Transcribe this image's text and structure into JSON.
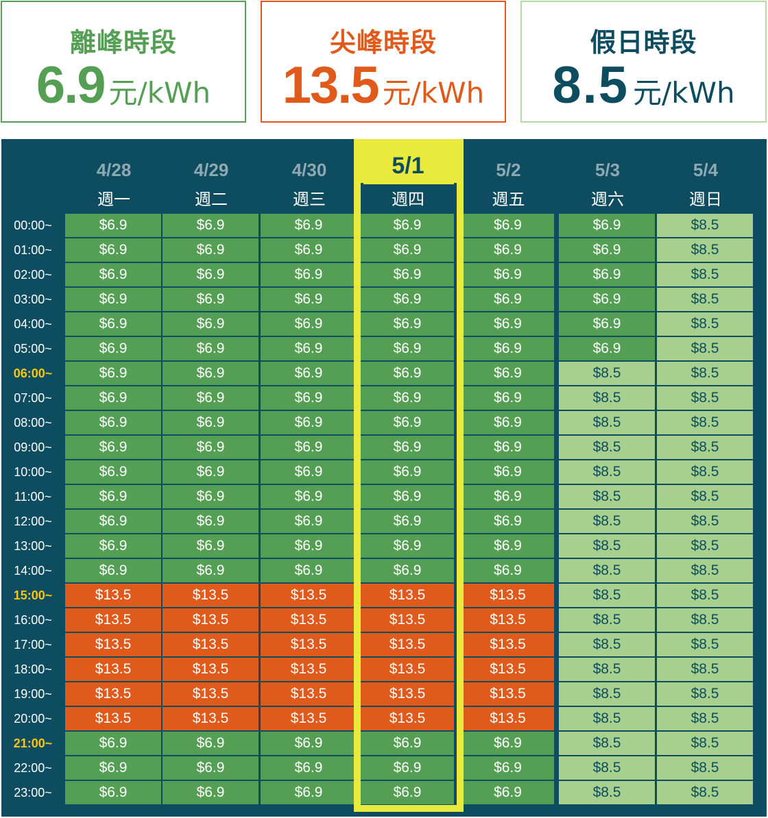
{
  "cards": [
    {
      "title": "離峰時段",
      "value": "6.9",
      "unit": "元/kWh",
      "color": "#559f54"
    },
    {
      "title": "尖峰時段",
      "value": "13.5",
      "unit": "元/kWh",
      "color": "#df5a1b"
    },
    {
      "title": "假日時段",
      "value": "8.5",
      "unit": "元/kWh",
      "color": "#0e4d60"
    }
  ],
  "highlight_day_index": 3,
  "days": [
    {
      "date": "4/28",
      "weekday": "週一"
    },
    {
      "date": "4/29",
      "weekday": "週二"
    },
    {
      "date": "4/30",
      "weekday": "週三"
    },
    {
      "date": "5/1",
      "weekday": "週四"
    },
    {
      "date": "5/2",
      "weekday": "週五"
    },
    {
      "date": "5/3",
      "weekday": "週六"
    },
    {
      "date": "5/4",
      "weekday": "週日"
    }
  ],
  "times": [
    "00:00~",
    "01:00~",
    "02:00~",
    "03:00~",
    "04:00~",
    "05:00~",
    "06:00~",
    "07:00~",
    "08:00~",
    "09:00~",
    "10:00~",
    "11:00~",
    "12:00~",
    "13:00~",
    "14:00~",
    "15:00~",
    "16:00~",
    "17:00~",
    "18:00~",
    "19:00~",
    "20:00~",
    "21:00~",
    "22:00~",
    "23:00~"
  ],
  "marked_times": [
    "06:00~",
    "15:00~",
    "21:00~"
  ],
  "price_labels": {
    "off": "$6.9",
    "peak": "$13.5",
    "hol": "$8.5"
  },
  "colors": {
    "off": "#559f54",
    "peak": "#df5a1b",
    "hol": "#a7cf8e",
    "background": "#0e4d60",
    "highlight": "#eaea3c",
    "time_mark": "#f5c518"
  },
  "grid": [
    [
      "off",
      "off",
      "off",
      "off",
      "off",
      "off",
      "hol"
    ],
    [
      "off",
      "off",
      "off",
      "off",
      "off",
      "off",
      "hol"
    ],
    [
      "off",
      "off",
      "off",
      "off",
      "off",
      "off",
      "hol"
    ],
    [
      "off",
      "off",
      "off",
      "off",
      "off",
      "off",
      "hol"
    ],
    [
      "off",
      "off",
      "off",
      "off",
      "off",
      "off",
      "hol"
    ],
    [
      "off",
      "off",
      "off",
      "off",
      "off",
      "off",
      "hol"
    ],
    [
      "off",
      "off",
      "off",
      "off",
      "off",
      "hol",
      "hol"
    ],
    [
      "off",
      "off",
      "off",
      "off",
      "off",
      "hol",
      "hol"
    ],
    [
      "off",
      "off",
      "off",
      "off",
      "off",
      "hol",
      "hol"
    ],
    [
      "off",
      "off",
      "off",
      "off",
      "off",
      "hol",
      "hol"
    ],
    [
      "off",
      "off",
      "off",
      "off",
      "off",
      "hol",
      "hol"
    ],
    [
      "off",
      "off",
      "off",
      "off",
      "off",
      "hol",
      "hol"
    ],
    [
      "off",
      "off",
      "off",
      "off",
      "off",
      "hol",
      "hol"
    ],
    [
      "off",
      "off",
      "off",
      "off",
      "off",
      "hol",
      "hol"
    ],
    [
      "off",
      "off",
      "off",
      "off",
      "off",
      "hol",
      "hol"
    ],
    [
      "peak",
      "peak",
      "peak",
      "peak",
      "peak",
      "hol",
      "hol"
    ],
    [
      "peak",
      "peak",
      "peak",
      "peak",
      "peak",
      "hol",
      "hol"
    ],
    [
      "peak",
      "peak",
      "peak",
      "peak",
      "peak",
      "hol",
      "hol"
    ],
    [
      "peak",
      "peak",
      "peak",
      "peak",
      "peak",
      "hol",
      "hol"
    ],
    [
      "peak",
      "peak",
      "peak",
      "peak",
      "peak",
      "hol",
      "hol"
    ],
    [
      "peak",
      "peak",
      "peak",
      "peak",
      "peak",
      "hol",
      "hol"
    ],
    [
      "off",
      "off",
      "off",
      "off",
      "off",
      "hol",
      "hol"
    ],
    [
      "off",
      "off",
      "off",
      "off",
      "off",
      "hol",
      "hol"
    ],
    [
      "off",
      "off",
      "off",
      "off",
      "off",
      "hol",
      "hol"
    ]
  ]
}
